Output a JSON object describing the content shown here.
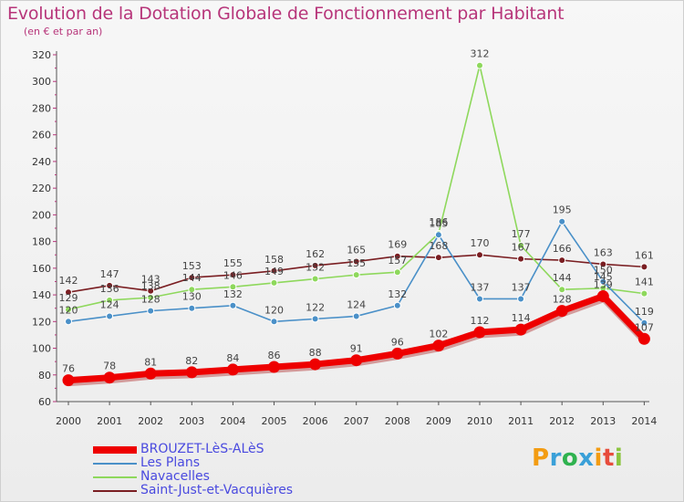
{
  "chart_data": {
    "type": "line",
    "title": "Evolution de la Dotation Globale de Fonctionnement par Habitant",
    "subtitle": "(en € et par an)",
    "xlabel": "",
    "ylabel": "",
    "ylim": [
      60,
      320
    ],
    "yticks": [
      60,
      80,
      100,
      120,
      140,
      160,
      180,
      200,
      220,
      240,
      260,
      280,
      300,
      320
    ],
    "categories": [
      "2000",
      "2001",
      "2002",
      "2003",
      "2004",
      "2005",
      "2006",
      "2007",
      "2008",
      "2009",
      "2010",
      "2011",
      "2012",
      "2013",
      "2014"
    ],
    "grid": false,
    "legend_position": "bottom-left",
    "series": [
      {
        "name": "Saint-Just-et-Vacquières",
        "color": "#7a1e22",
        "values": [
          142,
          147,
          143,
          153,
          155,
          158,
          162,
          165,
          169,
          168,
          170,
          167,
          166,
          163,
          161
        ]
      },
      {
        "name": "Navacelles",
        "color": "#8ed85c",
        "values": [
          129,
          136,
          138,
          144,
          146,
          149,
          152,
          155,
          157,
          186,
          312,
          177,
          144,
          145,
          141
        ]
      },
      {
        "name": "Les Plans",
        "color": "#4a90c8",
        "values": [
          120,
          124,
          128,
          130,
          132,
          120,
          122,
          124,
          132,
          185,
          137,
          137,
          195,
          150,
          119
        ]
      },
      {
        "name": "BROUZET-LèS-ALèS",
        "color": "#ee0000",
        "values": [
          76,
          78,
          81,
          82,
          84,
          86,
          88,
          91,
          96,
          102,
          112,
          114,
          128,
          139,
          107
        ]
      }
    ],
    "legend_order": [
      "BROUZET-LèS-ALèS",
      "Les Plans",
      "Navacelles",
      "Saint-Just-et-Vacquières"
    ]
  },
  "logo_text": "Proxiti"
}
